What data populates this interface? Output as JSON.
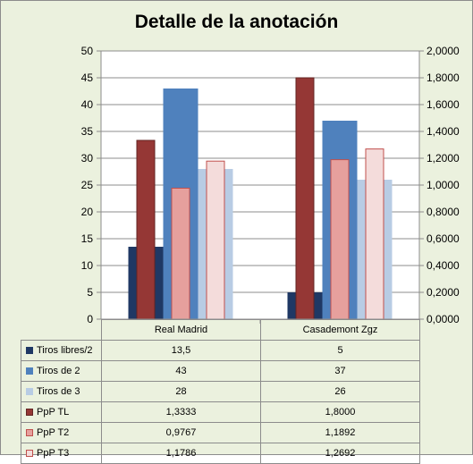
{
  "chart_data": {
    "type": "bar",
    "title": "Detalle de la anotación",
    "categories": [
      "Real Madrid",
      "Casademont Zgz"
    ],
    "y_left": {
      "min": 0,
      "max": 50,
      "step": 5,
      "ticks": [
        "0",
        "5",
        "10",
        "15",
        "20",
        "25",
        "30",
        "35",
        "40",
        "45",
        "50"
      ]
    },
    "y_right": {
      "min": 0,
      "max": 2,
      "step": 0.2,
      "ticks": [
        "0,0000",
        "0,2000",
        "0,4000",
        "0,6000",
        "0,8000",
        "1,0000",
        "1,2000",
        "1,4000",
        "1,6000",
        "1,8000",
        "2,0000"
      ]
    },
    "gridlines": true,
    "legend": "table",
    "series": [
      {
        "name": "Tiros libres/2",
        "axis": "left",
        "values": [
          13.5,
          5
        ],
        "labels": [
          "13,5",
          "5"
        ],
        "color": "#1f3864",
        "border": "#1f3864"
      },
      {
        "name": "Tiros de 2",
        "axis": "left",
        "values": [
          43,
          37
        ],
        "labels": [
          "43",
          "37"
        ],
        "color": "#4f81bd",
        "border": "#4f81bd"
      },
      {
        "name": "Tiros de 3",
        "axis": "left",
        "values": [
          28,
          26
        ],
        "labels": [
          "28",
          "26"
        ],
        "color": "#b8cce4",
        "border": "#b8cce4"
      },
      {
        "name": "PpP TL",
        "axis": "right",
        "values": [
          1.3333,
          1.8
        ],
        "labels": [
          "1,3333",
          "1,8000"
        ],
        "color": "#953735",
        "border": "#632523"
      },
      {
        "name": "PpP T2",
        "axis": "right",
        "values": [
          0.9767,
          1.1892
        ],
        "labels": [
          "0,9767",
          "1,1892"
        ],
        "color": "#e6a09d",
        "border": "#c0504d"
      },
      {
        "name": "PpP T3",
        "axis": "right",
        "values": [
          1.1786,
          1.2692
        ],
        "labels": [
          "1,1786",
          "1,2692"
        ],
        "color": "#f4dcdb",
        "border": "#c0504d"
      }
    ]
  }
}
